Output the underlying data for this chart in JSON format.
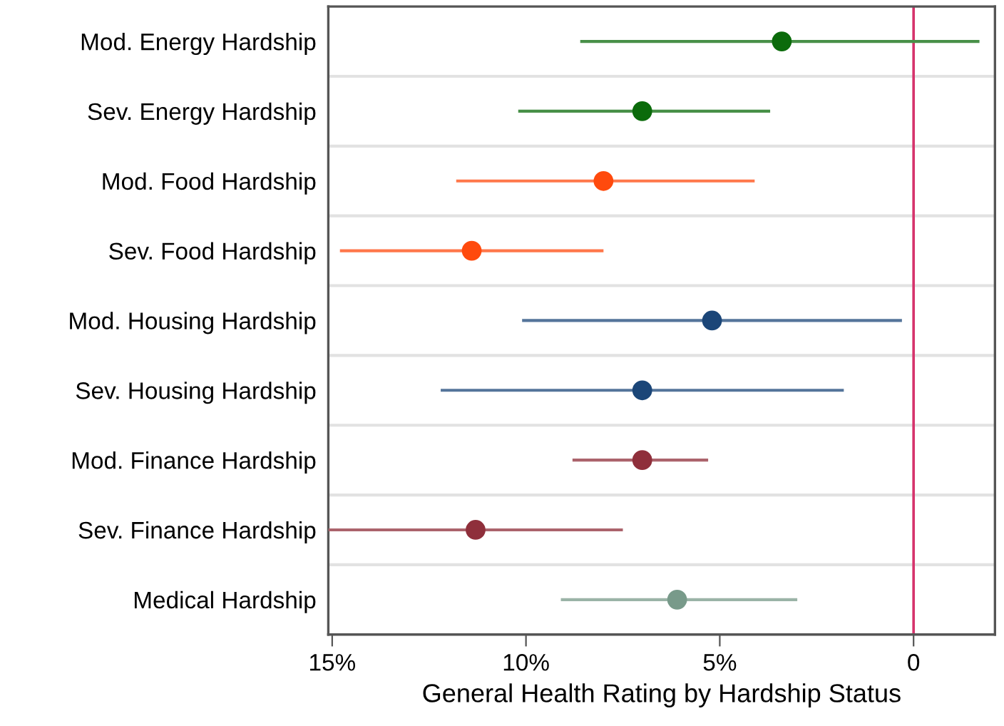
{
  "chart_data": {
    "type": "scatter",
    "orientation": "horizontal",
    "xlabel": "General Health Rating by Hardship Status",
    "categories": [
      "Mod. Energy Hardship",
      "Sev. Energy Hardship",
      "Mod. Food Hardship",
      "Sev. Food Hardship",
      "Mod. Housing Hardship",
      "Sev. Housing Hardship",
      "Mod. Finance Hardship",
      "Sev. Finance Hardship",
      "Medical Hardship"
    ],
    "values": [
      3.4,
      7.0,
      8.0,
      11.4,
      5.2,
      7.0,
      7.0,
      11.3,
      6.1
    ],
    "errors": [
      [
        8.6,
        -1.7
      ],
      [
        10.2,
        3.7
      ],
      [
        11.8,
        4.1
      ],
      [
        14.8,
        8.0
      ],
      [
        10.1,
        0.3
      ],
      [
        12.2,
        1.8
      ],
      [
        8.8,
        5.3
      ],
      [
        15.1,
        7.5
      ],
      [
        9.1,
        3.0
      ]
    ],
    "colors": [
      "#0b6b0b",
      "#0b6b0b",
      "#ff4a0d",
      "#ff4a0d",
      "#1b4678",
      "#1b4678",
      "#8f2f3b",
      "#8f2f3b",
      "#789a8a"
    ],
    "xlim": [
      15.1,
      -2.1
    ],
    "xticks": [
      {
        "value": 15,
        "label": "15%"
      },
      {
        "value": 10,
        "label": "10%"
      },
      {
        "value": 5,
        "label": "5%"
      },
      0
    ],
    "ref_lines": [
      {
        "axis": "x",
        "value": 0,
        "color": "#d6336c"
      }
    ],
    "grid": "y",
    "marker": "circle"
  }
}
